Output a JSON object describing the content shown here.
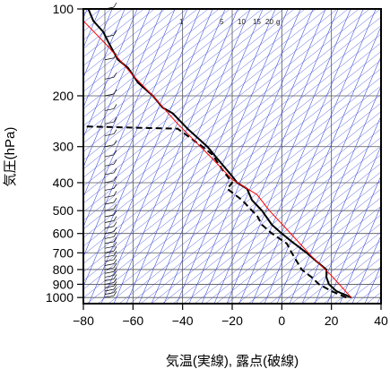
{
  "chart_data": {
    "type": "line",
    "title": "",
    "xlabel": "気温(実線), 露点(破線)",
    "ylabel": "気圧(hPa)",
    "xlim": [
      -80,
      40
    ],
    "ylim": [
      1050,
      100
    ],
    "y_scale": "log",
    "x_ticks": [
      -80,
      -60,
      -40,
      -20,
      0,
      20,
      40
    ],
    "x_tick_labels": [
      "−80",
      "−60",
      "−40",
      "−20",
      "0",
      "20",
      "40"
    ],
    "y_ticks": [
      100,
      200,
      300,
      400,
      500,
      600,
      700,
      800,
      900,
      1000
    ],
    "mixing_ratio_labels": [
      "1",
      "5",
      "10",
      "15",
      "20",
      "g"
    ],
    "series": [
      {
        "role": "temperature",
        "style": "solid",
        "color": "#000000",
        "points": [
          [
            28,
            1000
          ],
          [
            25,
            975
          ],
          [
            22,
            950
          ],
          [
            19,
            900
          ],
          [
            18,
            850
          ],
          [
            18,
            820
          ],
          [
            18,
            800
          ],
          [
            14,
            750
          ],
          [
            10,
            700
          ],
          [
            4,
            640
          ],
          [
            0,
            600
          ],
          [
            -4,
            560
          ],
          [
            -8,
            500
          ],
          [
            -12,
            460
          ],
          [
            -14,
            420
          ],
          [
            -18,
            400
          ],
          [
            -20,
            380
          ],
          [
            -26,
            330
          ],
          [
            -30,
            300
          ],
          [
            -38,
            260
          ],
          [
            -44,
            230
          ],
          [
            -48,
            220
          ],
          [
            -52,
            200
          ],
          [
            -58,
            180
          ],
          [
            -62,
            160
          ],
          [
            -66,
            150
          ],
          [
            -68,
            140
          ],
          [
            -70,
            130
          ],
          [
            -72,
            120
          ],
          [
            -76,
            110
          ],
          [
            -78,
            100
          ]
        ]
      },
      {
        "role": "dewpoint",
        "style": "dashed",
        "color": "#000000",
        "points": [
          [
            26,
            1000
          ],
          [
            20,
            950
          ],
          [
            15,
            900
          ],
          [
            12,
            850
          ],
          [
            8,
            800
          ],
          [
            4,
            700
          ],
          [
            2,
            650
          ],
          [
            -4,
            600
          ],
          [
            -8,
            560
          ],
          [
            -10,
            520
          ],
          [
            -12,
            500
          ],
          [
            -16,
            460
          ],
          [
            -22,
            420
          ],
          [
            -20,
            400
          ],
          [
            -24,
            360
          ],
          [
            -28,
            320
          ],
          [
            -32,
            300
          ],
          [
            -42,
            260
          ],
          [
            -82,
            255
          ]
        ]
      },
      {
        "role": "parcel",
        "style": "solid",
        "color": "#ff0000",
        "points": [
          [
            28,
            1000
          ],
          [
            20,
            840
          ],
          [
            12,
            720
          ],
          [
            2,
            580
          ],
          [
            -5,
            500
          ],
          [
            -10,
            440
          ],
          [
            -20,
            390
          ],
          [
            -28,
            330
          ],
          [
            -42,
            250
          ],
          [
            -52,
            200
          ],
          [
            -60,
            170
          ],
          [
            -70,
            135
          ],
          [
            -80,
            110
          ],
          [
            -85,
            105
          ]
        ]
      }
    ]
  }
}
